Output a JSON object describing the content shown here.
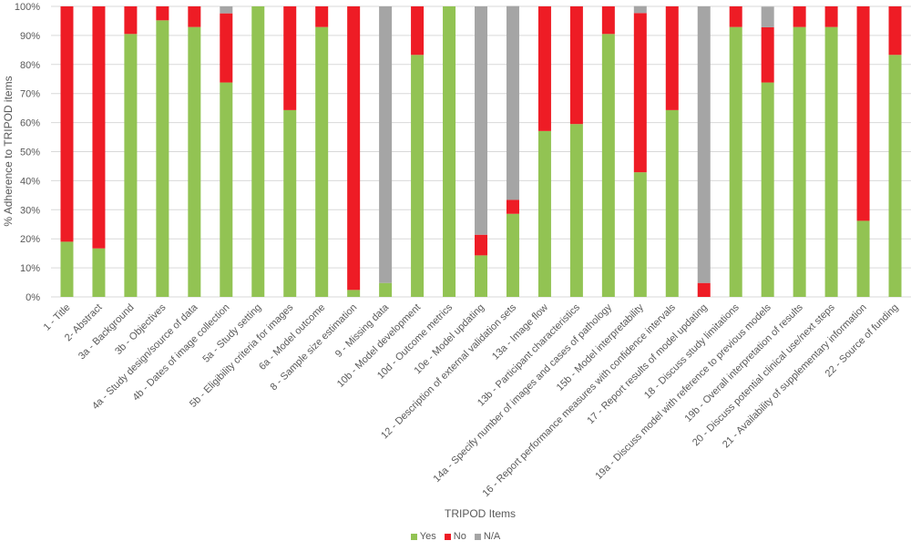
{
  "chart_data": {
    "type": "bar",
    "stacked": true,
    "title": "",
    "xlabel": "TRIPOD Items",
    "ylabel": "% Adherence to TRIPOD items",
    "ylim": [
      0,
      100
    ],
    "yticks": [
      "0%",
      "10%",
      "20%",
      "30%",
      "40%",
      "50%",
      "60%",
      "70%",
      "80%",
      "90%",
      "100%"
    ],
    "grid": true,
    "legend_position": "bottom",
    "categories": [
      "1 - Title",
      "2- Abstract",
      "3a - Background",
      "3b - Objectives",
      "4a - Study design/source of data",
      "4b - Dates of image collection",
      "5a - Study setting",
      "5b - Eligibility criteria for images",
      "6a - Model outcome",
      "8 - Sample size estimation",
      "9 - Missing data",
      "10b - Model development",
      "10d - Outcome metrics",
      "10e - Model updating",
      "12 - Description of external validation sets",
      "13a - Image flow",
      "13b - Participant characteristics",
      "14a - Specify number of images and cases of pathology",
      "15b - Model interpretability",
      "16 - Report performance measures with confidence intervals",
      "17 - Report results of model updating",
      "18 - Discuss study limitations",
      "19a - Discuss model with reference to previous models",
      "19b - Overall interpretation of results",
      "20 - Discuss potential clinical use/next steps",
      "21 - Availability of supplementary information",
      "22 - Source of funding"
    ],
    "series": [
      {
        "name": "Yes",
        "color": "#92c353",
        "values": [
          19.0,
          16.7,
          90.5,
          95.2,
          92.9,
          73.8,
          100,
          64.3,
          92.9,
          2.4,
          4.8,
          83.3,
          100,
          14.3,
          28.6,
          57.1,
          59.5,
          90.5,
          42.9,
          64.3,
          0,
          92.9,
          73.8,
          92.9,
          92.9,
          26.2,
          83.3
        ]
      },
      {
        "name": "No",
        "color": "#ee1c25",
        "values": [
          81.0,
          83.3,
          9.5,
          4.8,
          7.1,
          23.8,
          0,
          35.7,
          7.1,
          97.6,
          0,
          16.7,
          0,
          7.1,
          4.8,
          42.9,
          40.5,
          9.5,
          54.8,
          35.7,
          4.8,
          7.1,
          19.0,
          7.1,
          7.1,
          73.8,
          16.7
        ]
      },
      {
        "name": "N/A",
        "color": "#a5a5a5",
        "values": [
          0,
          0,
          0,
          0,
          0,
          2.4,
          0,
          0,
          0,
          0,
          95.2,
          0,
          0,
          78.6,
          66.7,
          0,
          0,
          0,
          2.4,
          0,
          95.2,
          0,
          7.1,
          0,
          0,
          0,
          0
        ]
      }
    ]
  }
}
